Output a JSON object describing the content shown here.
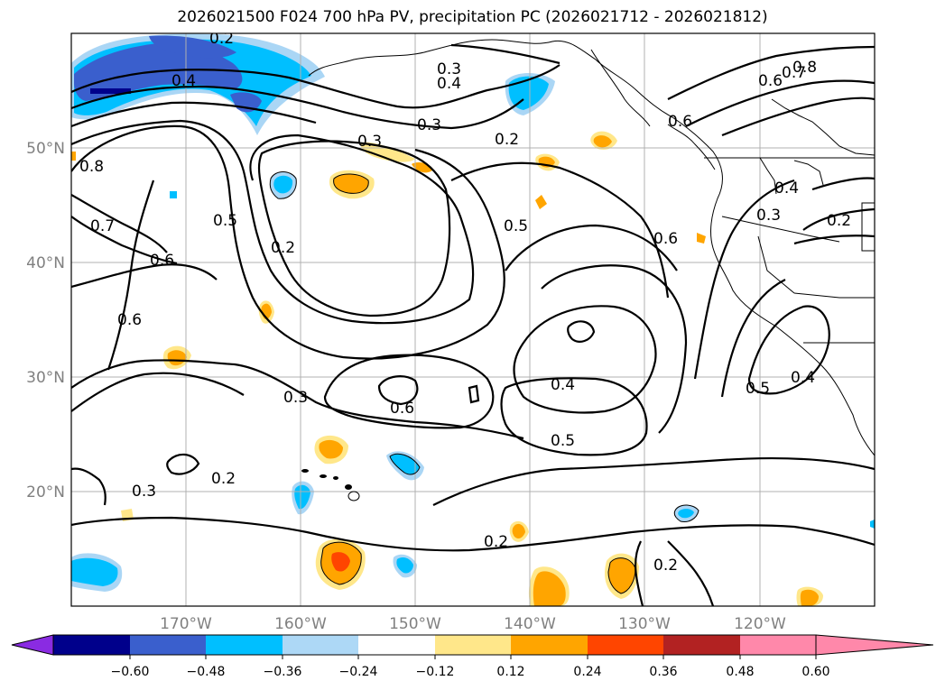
{
  "title": "2026021500 F024 700 hPa PV, precipitation PC (2026021712 - 2026021812)",
  "map": {
    "lon_range": [
      -180,
      -110
    ],
    "lat_range": [
      10,
      60
    ],
    "lat_ticks": [
      "50°N",
      "40°N",
      "30°N",
      "20°N"
    ],
    "lon_ticks": [
      "170°W",
      "160°W",
      "150°W",
      "140°W",
      "130°W",
      "120°W"
    ],
    "contour_labels": [
      "0.2",
      "0.4",
      "0.3",
      "0.4",
      "0.8",
      "0.7",
      "0.6",
      "0.3",
      "0.3",
      "0.2",
      "0.8",
      "0.7",
      "0.6",
      "0.5",
      "0.2",
      "0.5",
      "0.6",
      "0.4",
      "0.3",
      "0.2",
      "0.6",
      "0.3",
      "0.6",
      "0.4",
      "0.5",
      "0.2",
      "0.3",
      "0.2",
      "0.5",
      "0.4",
      "0.2",
      "0.6"
    ]
  },
  "colorbar": {
    "labels": [
      "−0.60",
      "−0.48",
      "−0.36",
      "−0.24",
      "−0.12",
      "0.12",
      "0.24",
      "0.36",
      "0.48",
      "0.60"
    ],
    "colors": [
      "#8a2be2",
      "#00008b",
      "#3a5fcd",
      "#00bfff",
      "#add8f6",
      "#ffffff",
      "#ffe78a",
      "#ffa500",
      "#ff4500",
      "#b22222",
      "#ff88aa"
    ]
  }
}
